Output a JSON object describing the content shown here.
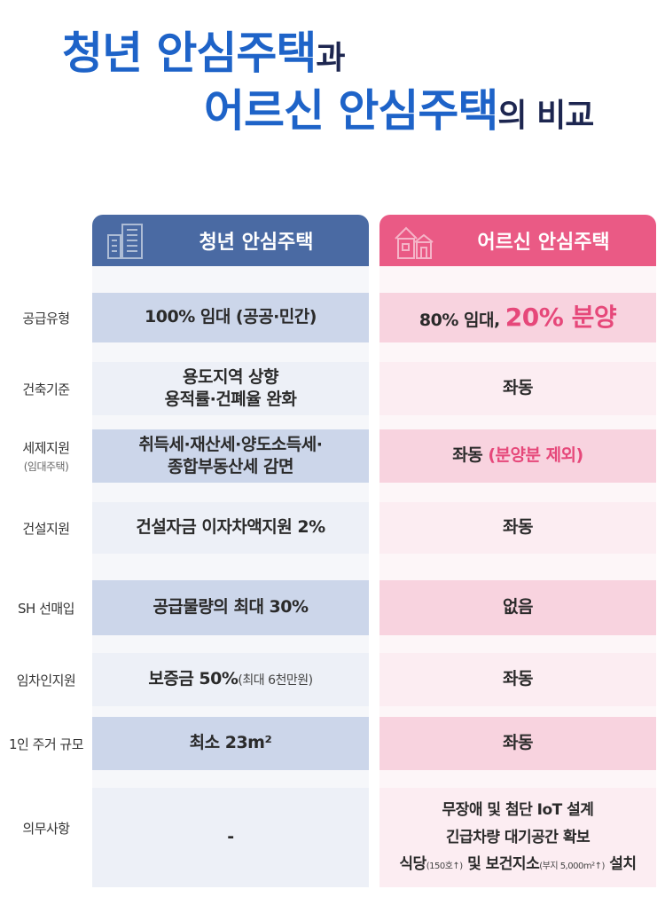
{
  "title": {
    "line1_highlight": "청년 안심주택",
    "line1_suffix": "과",
    "line2_highlight": "어르신 안심주택",
    "line2_suffix": "의 비교"
  },
  "columns": {
    "youth": "청년 안심주택",
    "elder": "어르신 안심주택"
  },
  "rows": [
    {
      "label": "공급유형",
      "youth": "100% 임대 (공공·민간)",
      "elder_a": "80% 임대, ",
      "elder_b": "20% 분양"
    },
    {
      "label": "건축기준",
      "youth_line1": "용도지역 상향",
      "youth_line2": "용적률·건폐율 완화",
      "elder": "좌동"
    },
    {
      "label": "세제지원",
      "label_sub": "(임대주택)",
      "youth_line1": "취득세·재산세·양도소득세·",
      "youth_line2": "종합부동산세 감면",
      "elder_a": "좌동 ",
      "elder_b": "(분양분 제외)"
    },
    {
      "label": "건설지원",
      "youth": "건설자금 이자차액지원 2%",
      "elder": "좌동"
    },
    {
      "label": "SH 선매입",
      "youth": "공급물량의 최대 30%",
      "elder": "없음"
    },
    {
      "label": "임차인지원",
      "youth_a": "보증금 50%",
      "youth_b": "(최대 6천만원)",
      "elder": "좌동"
    },
    {
      "label": "1인 주거 규모",
      "youth": "최소 23m²",
      "elder": "좌동"
    },
    {
      "label": "의무사항",
      "youth": "-",
      "elder_line1": "무장애 및 첨단 IoT 설계",
      "elder_line2": "긴급차량 대기공간 확보",
      "elder_line3_a": "식당",
      "elder_line3_b": "(150호↑)",
      "elder_line3_c": " 및 보건지소",
      "elder_line3_d": "(부지 5,000m²↑)",
      "elder_line3_e": " 설치"
    }
  ],
  "icons": {
    "youth_header": "building-icon",
    "elder_header": "house-icon"
  },
  "colors": {
    "youth_header": "#4a6aa3",
    "elder_header": "#ea5a85",
    "title_blue": "#1e63c8",
    "accent_pink": "#e6487a"
  }
}
